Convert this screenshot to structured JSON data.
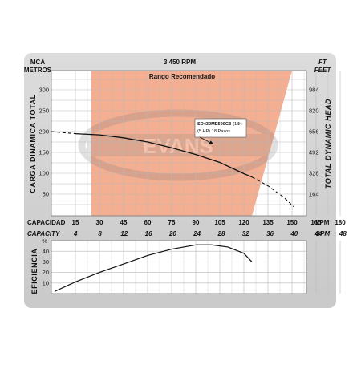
{
  "chart_data": [
    {
      "type": "line",
      "title": "3 450 RPM",
      "left_unit_top": "MCA",
      "left_unit": "METROS",
      "right_unit_top": "FT",
      "right_unit": "FEET",
      "ylabel_left": "CARGA DINAMICA TOTAL",
      "ylabel_right": "TOTAL DYNAMIC HEAD",
      "xlabel_primary": "CAPACIDAD",
      "xlabel_primary_unit": "LPM",
      "xlabel_secondary": "CAPACITY",
      "xlabel_secondary_unit": "GPM",
      "xlim": [
        15,
        180
      ],
      "ylim": [
        0,
        325
      ],
      "x_ticks_lpm": [
        "15",
        "30",
        "45",
        "60",
        "75",
        "90",
        "105",
        "120",
        "135",
        "150",
        "165",
        "180"
      ],
      "x_ticks_gpm": [
        "4",
        "8",
        "12",
        "16",
        "20",
        "24",
        "28",
        "32",
        "36",
        "40",
        "44",
        "48"
      ],
      "y_ticks_m": [
        "50",
        "100",
        "150",
        "200",
        "250",
        "300"
      ],
      "y_ticks_ft": [
        "164",
        "328",
        "492",
        "656",
        "820",
        "984"
      ],
      "recommended_range": {
        "label": "Rango Recomendado",
        "x_start": 25,
        "x_end": 125,
        "x_top_end": 150
      },
      "watermark": "EVANS",
      "annotation": {
        "line1": "SD430ME500G3",
        "line1b": "(1Φ)",
        "line2": "(5 HP)  18 Pasos",
        "x": 101,
        "y": 168
      },
      "series": [
        {
          "x": [
            15,
            30,
            45,
            60,
            75,
            90,
            105,
            120,
            125
          ],
          "y": [
            195,
            192,
            185,
            175,
            161,
            145,
            126,
            99,
            91
          ],
          "style": "solid"
        },
        {
          "x": [
            125,
            135,
            145,
            151
          ],
          "y": [
            91,
            70,
            42,
            20
          ],
          "style": "dashed"
        },
        {
          "x": [
            0,
            15
          ],
          "y": [
            200,
            195
          ],
          "style": "dashed"
        }
      ],
      "grid": true
    },
    {
      "type": "line",
      "ylabel": "EFICIENCIA",
      "unit": "%",
      "ylim": [
        0,
        50
      ],
      "y_ticks": [
        "10",
        "20",
        "30",
        "40"
      ],
      "series": [
        {
          "x": [
            0,
            15,
            30,
            45,
            60,
            75,
            90,
            100,
            110,
            120,
            125
          ],
          "y": [
            2,
            11,
            20,
            28,
            36,
            42,
            46,
            46,
            44,
            38,
            30
          ]
        }
      ],
      "grid": true
    }
  ]
}
